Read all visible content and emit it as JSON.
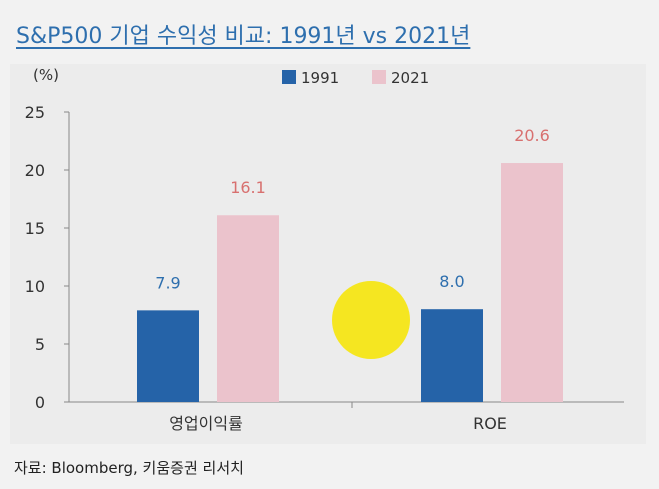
{
  "title": "S&P500 기업 수익성 비교: 1991년 vs 2021년",
  "source": "자료: Bloomberg, 키움증권 리서치",
  "colors": {
    "title": "#2e6fae",
    "series_1991": "#2563a8",
    "series_2021": "#ebc3cc",
    "label_1991": "#2e6fae",
    "label_2021": "#d8706f",
    "highlight_marker": "#f5e616"
  },
  "chart_data": {
    "type": "bar",
    "unit_label": "(%)",
    "categories": [
      "영업이익률",
      "ROE"
    ],
    "series": [
      {
        "name": "1991",
        "values": [
          7.9,
          8.0
        ],
        "labels": [
          "7.9",
          "8.0"
        ]
      },
      {
        "name": "2021",
        "values": [
          16.1,
          20.6
        ],
        "labels": [
          "16.1",
          "20.6"
        ]
      }
    ],
    "ylim": [
      0,
      25
    ],
    "yticks": [
      "0",
      "5",
      "10",
      "15",
      "20",
      "25"
    ],
    "grid": false,
    "legend_position": "top"
  }
}
